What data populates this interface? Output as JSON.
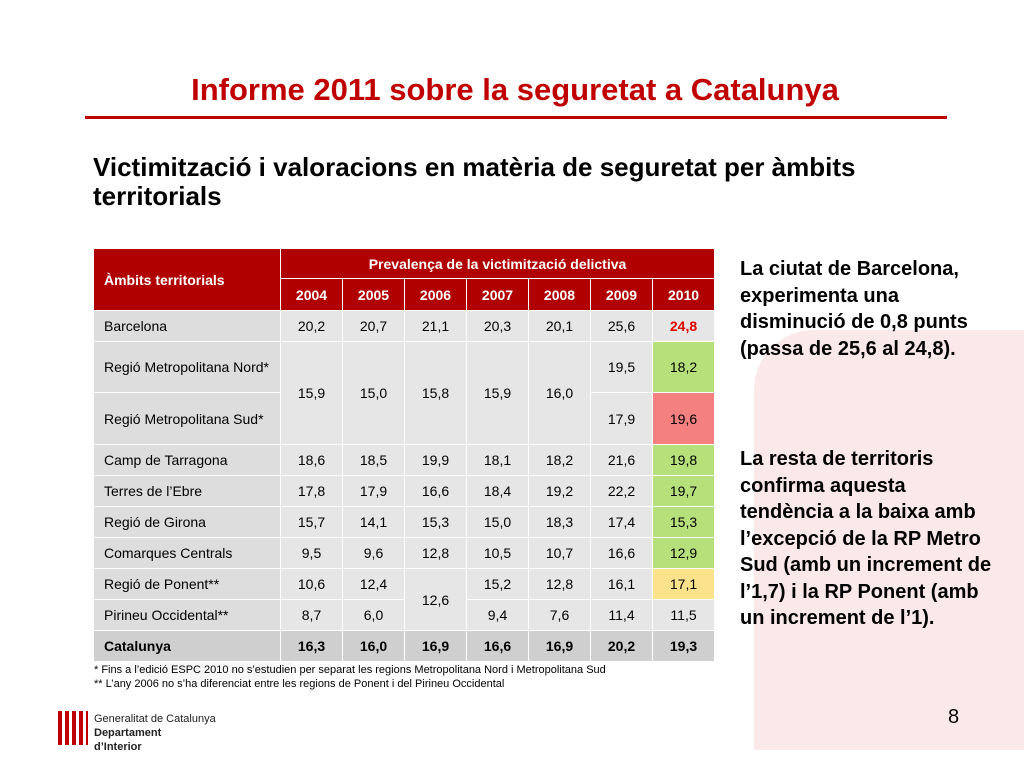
{
  "title": "Informe 2011 sobre la seguretat a Catalunya",
  "subtitle": "Victimització i valoracions en matèria de seguretat per àmbits territorials",
  "table": {
    "header_territory": "Àmbits territorials",
    "header_group": "Prevalença de la victimització delictiva",
    "years": [
      "2004",
      "2005",
      "2006",
      "2007",
      "2008",
      "2009",
      "2010"
    ],
    "rows": {
      "barcelona": {
        "name": "Barcelona",
        "values": [
          "20,2",
          "20,7",
          "21,1",
          "20,3",
          "20,1",
          "25,6",
          "24,8"
        ]
      },
      "rm_nord": {
        "name": "Regió Metropolitana Nord*",
        "v2009": "19,5",
        "v2010": "18,2"
      },
      "rm_sud": {
        "name": "Regió Metropolitana Sud*",
        "v2009": "17,9",
        "v2010": "19,6"
      },
      "rm_shared": [
        "15,9",
        "15,0",
        "15,8",
        "15,9",
        "16,0"
      ],
      "tarragona": {
        "name": "Camp de Tarragona",
        "values": [
          "18,6",
          "18,5",
          "19,9",
          "18,1",
          "18,2",
          "21,6",
          "19,8"
        ]
      },
      "ebre": {
        "name": "Terres de l’Ebre",
        "values": [
          "17,8",
          "17,9",
          "16,6",
          "18,4",
          "19,2",
          "22,2",
          "19,7"
        ]
      },
      "girona": {
        "name": "Regió de Girona",
        "values": [
          "15,7",
          "14,1",
          "15,3",
          "15,0",
          "18,3",
          "17,4",
          "15,3"
        ]
      },
      "centrals": {
        "name": "Comarques Centrals",
        "values": [
          "9,5",
          "9,6",
          "12,8",
          "10,5",
          "10,7",
          "16,6",
          "12,9"
        ]
      },
      "ponent": {
        "name": "Regió de Ponent**",
        "v2004": "10,6",
        "v2005": "12,4",
        "v2007": "15,2",
        "v2008": "12,8",
        "v2009": "16,1",
        "v2010": "17,1"
      },
      "pirineu": {
        "name": "Pirineu Occidental**",
        "v2004": "8,7",
        "v2005": "6,0",
        "v2007": "9,4",
        "v2008": "7,6",
        "v2009": "11,4",
        "v2010": "11,5"
      },
      "ponent_pirineu_2006": "12,6",
      "catalunya": {
        "name": "Catalunya",
        "values": [
          "16,3",
          "16,0",
          "16,9",
          "16,6",
          "16,9",
          "20,2",
          "19,3"
        ]
      }
    }
  },
  "side_notes": {
    "note1": "La ciutat de Barcelona, experimenta una disminució de 0,8 punts (passa de 25,6 al 24,8).",
    "note2": "La resta de territoris confirma aquesta tendència a la baixa amb l’excepció de la RP Metro Sud (amb un increment de l’1,7) i la RP Ponent (amb un increment de l’1)."
  },
  "footnotes": {
    "f1": "*  Fins a l’edició ESPC 2010 no s’estudien per separat les regions Metropolitana Nord i Metropolitana Sud",
    "f2": "** L’any 2006 no s’ha diferenciat entre les regions de Ponent i del Pirineu Occidental"
  },
  "logo": {
    "line1": "Generalitat de Catalunya",
    "line2": "Departament",
    "line3": "d’Interior"
  },
  "page_number": "8",
  "colors": {
    "accent": "#c00000",
    "decrease": "#b5e07a",
    "increase_strong": "#f58080",
    "increase_mild": "#fde28c"
  }
}
